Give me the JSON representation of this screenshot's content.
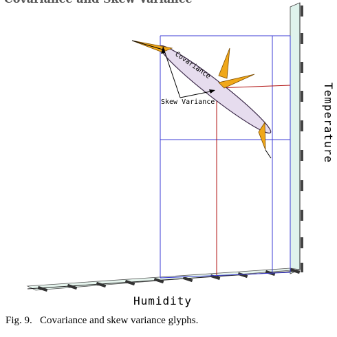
{
  "figure": {
    "title_fragment": "Covariance and Skew Variance",
    "x_axis_title": "Humidity",
    "y_axis_title": "Temperature",
    "glyph_labels": {
      "covariance": "Covariance",
      "skew_variance": "Skew Variance"
    }
  },
  "caption": {
    "label": "Fig. 9.",
    "text": "Covariance and skew variance glyphs."
  },
  "colors": {
    "grid_line": "#3b3bd6",
    "marker_line": "#b01010",
    "arrow_fill": "#f0a81a",
    "arrow_stroke": "#7a4a00",
    "ellipse_fill": "#e6dcee",
    "ellipse_stroke": "#3c2a4a",
    "axis_band": "#dff3ec"
  }
}
